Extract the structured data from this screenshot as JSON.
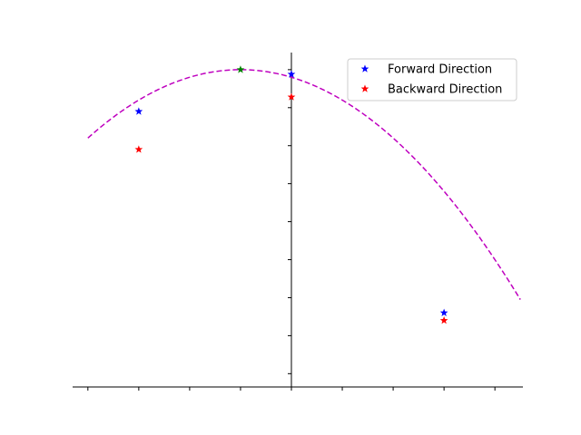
{
  "chart_data": {
    "type": "scatter",
    "title": "",
    "xlabel": "",
    "ylabel": "",
    "xlim": [
      -4.3,
      4.55
    ],
    "ylim": [
      -8.35,
      0.45
    ],
    "x_ticks": [
      -4,
      -3,
      -2,
      -1,
      0,
      1,
      2,
      3,
      4
    ],
    "y_ticks": [
      -8,
      -7,
      -6,
      -5,
      -4,
      -3,
      -2,
      -1,
      0
    ],
    "tick_labels_visible": false,
    "spines": "centered (left spine at x=0.0, bottom spine at bottom of plot)",
    "grid": false,
    "legend_position": "top-right",
    "curve": {
      "style": "dashed",
      "color": "#bf00bf",
      "x_range": [
        -4.0,
        4.5
      ],
      "vertex": [
        -1.0,
        0.0
      ],
      "quadratic_coef": -0.2
    },
    "series": [
      {
        "name": "Forward Direction",
        "marker": "star",
        "color": "#0000ff",
        "points": [
          [
            -3.0,
            -1.1
          ],
          [
            0.0,
            -0.12
          ],
          [
            3.0,
            -6.4
          ]
        ]
      },
      {
        "name": "Backward Direction",
        "marker": "star",
        "color": "#ff0000",
        "points": [
          [
            -3.0,
            -2.1
          ],
          [
            0.0,
            -0.72
          ],
          [
            3.0,
            -6.6
          ]
        ]
      },
      {
        "name": "",
        "marker": "star",
        "color": "#008000",
        "points": [
          [
            -1.0,
            0.0
          ]
        ]
      }
    ]
  }
}
